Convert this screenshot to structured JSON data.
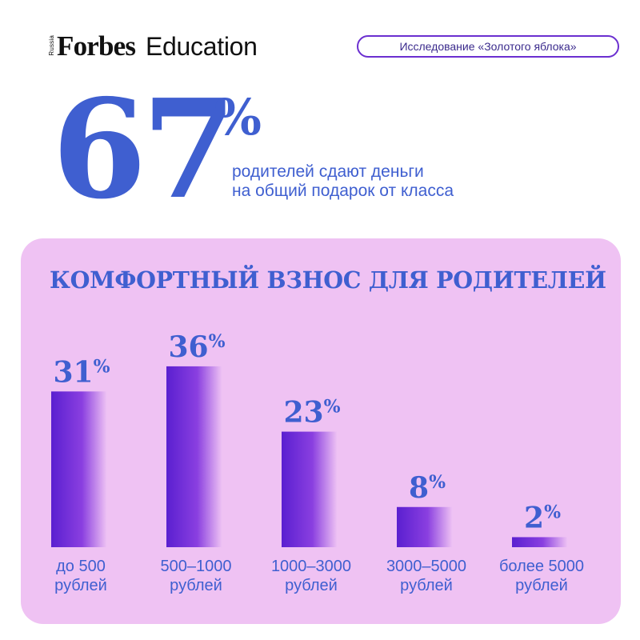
{
  "brand": {
    "edition": "Russia",
    "forbes": "Forbes",
    "education": "Education"
  },
  "badge": {
    "label": "Исследование «Золотого яблока»",
    "border_color": "#6b2fd0"
  },
  "headline": {
    "value": "67",
    "unit": "%",
    "line1": "родителей сдают деньги",
    "line2": "на общий подарок от класса",
    "color": "#3f5fd0"
  },
  "panel": {
    "background": "#efc2f3"
  },
  "chart_data": {
    "type": "bar",
    "title": "КОМФОРТНЫЙ ВЗНОС ДЛЯ РОДИТЕЛЕЙ",
    "categories": [
      [
        "до 500",
        "рублей"
      ],
      [
        "500–1000",
        "рублей"
      ],
      [
        "1000–3000",
        "рублей"
      ],
      [
        "3000–5000",
        "рублей"
      ],
      [
        "более 5000",
        "рублей"
      ]
    ],
    "values": [
      31,
      36,
      23,
      8,
      2
    ],
    "value_labels": [
      "31%",
      "36%",
      "23%",
      "8%",
      "2%"
    ],
    "unit": "%",
    "xlabel": "",
    "ylabel": "",
    "ylim": [
      0,
      36
    ],
    "grid": false,
    "bar_gradient": [
      "#5a1fd0",
      "#f0c4f4"
    ],
    "label_color": "#3f5fd0"
  }
}
